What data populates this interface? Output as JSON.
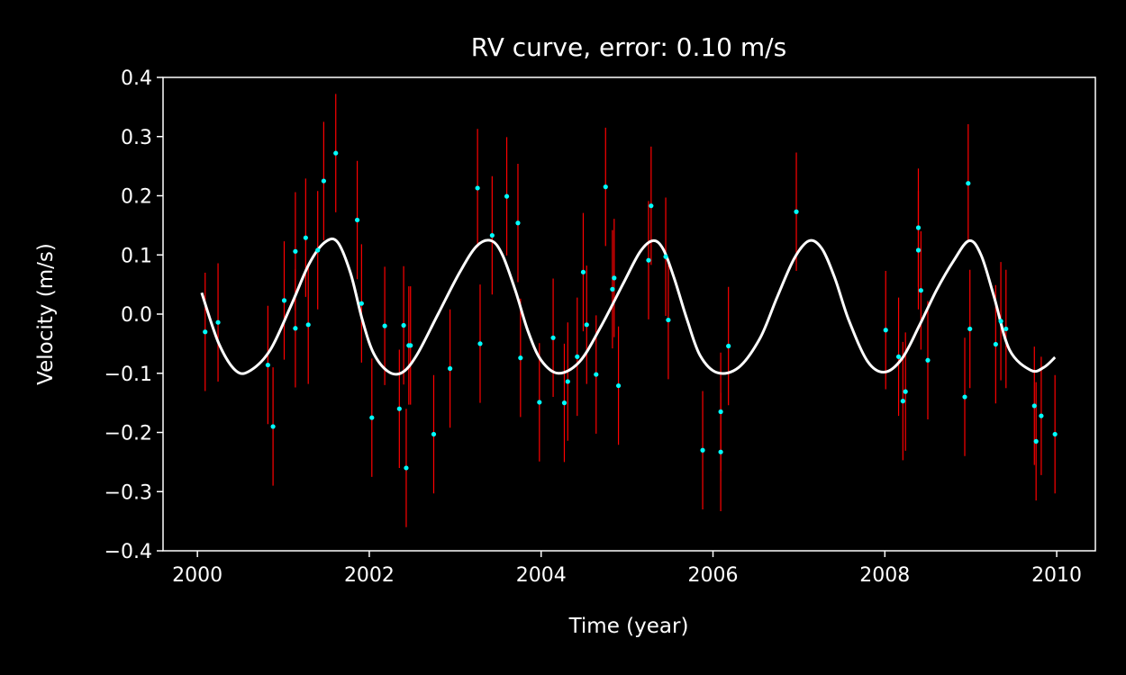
{
  "chart_data": {
    "type": "scatter",
    "title": "RV curve, error: 0.10 m/s",
    "xlabel": "Time (year)",
    "ylabel": "Velocity (m/s)",
    "xlim": [
      1999.6,
      2010.45
    ],
    "ylim": [
      -0.4,
      0.4
    ],
    "xticks": [
      2000,
      2002,
      2004,
      2006,
      2008,
      2010
    ],
    "xtick_labels": [
      "2000",
      "2002",
      "2004",
      "2006",
      "2008",
      "2010"
    ],
    "yticks": [
      -0.4,
      -0.3,
      -0.2,
      -0.1,
      0.0,
      0.1,
      0.2,
      0.3,
      0.4
    ],
    "ytick_labels": [
      "−0.4",
      "−0.3",
      "−0.2",
      "−0.1",
      "0.0",
      "0.1",
      "0.2",
      "0.3",
      "0.4"
    ],
    "grid": false,
    "error": 0.1,
    "series": [
      {
        "kind": "observations",
        "marker_color": "#00FFFF",
        "errorbar_color": "#FF0000",
        "x": [
          2000.09,
          2000.24,
          2000.82,
          2000.88,
          2001.01,
          2001.14,
          2001.14,
          2001.26,
          2001.29,
          2001.4,
          2001.47,
          2001.61,
          2001.86,
          2001.91,
          2002.03,
          2002.18,
          2002.35,
          2002.4,
          2002.43,
          2002.46,
          2002.48,
          2002.75,
          2002.94,
          2003.26,
          2003.29,
          2003.43,
          2003.6,
          2003.73,
          2003.76,
          2003.98,
          2004.14,
          2004.27,
          2004.31,
          2004.42,
          2004.49,
          2004.53,
          2004.64,
          2004.75,
          2004.83,
          2004.85,
          2004.9,
          2005.25,
          2005.28,
          2005.45,
          2005.48,
          2005.88,
          2006.09,
          2006.09,
          2006.18,
          2006.97,
          2008.01,
          2008.16,
          2008.21,
          2008.24,
          2008.39,
          2008.39,
          2008.42,
          2008.5,
          2008.93,
          2008.97,
          2008.99,
          2009.29,
          2009.35,
          2009.41,
          2009.74,
          2009.76,
          2009.82,
          2009.98
        ],
        "y": [
          -0.03,
          -0.014,
          -0.086,
          -0.19,
          0.023,
          0.106,
          -0.024,
          0.129,
          -0.018,
          0.108,
          0.225,
          0.272,
          0.159,
          0.018,
          -0.175,
          -0.02,
          -0.16,
          -0.019,
          -0.26,
          -0.053,
          -0.053,
          -0.203,
          -0.092,
          0.213,
          -0.05,
          0.133,
          0.199,
          0.154,
          -0.074,
          -0.149,
          -0.04,
          -0.15,
          -0.114,
          -0.072,
          0.071,
          -0.018,
          -0.102,
          0.215,
          0.042,
          0.061,
          -0.121,
          0.091,
          0.183,
          0.097,
          -0.01,
          -0.23,
          -0.165,
          -0.233,
          -0.054,
          0.173,
          -0.027,
          -0.072,
          -0.147,
          -0.131,
          0.146,
          0.108,
          0.04,
          -0.078,
          -0.14,
          0.221,
          -0.025,
          -0.051,
          -0.012,
          -0.025,
          -0.155,
          -0.215,
          -0.172,
          -0.203
        ]
      },
      {
        "kind": "model",
        "line_color": "#FFFFFF",
        "x": [
          2000.05,
          2000.25,
          2000.45,
          2000.62,
          2000.85,
          2001.1,
          2001.3,
          2001.48,
          2001.63,
          2001.78,
          2001.92,
          2002.05,
          2002.22,
          2002.38,
          2002.55,
          2002.8,
          2003.05,
          2003.25,
          2003.42,
          2003.55,
          2003.7,
          2003.85,
          2004.0,
          2004.2,
          2004.45,
          2004.7,
          2004.95,
          2005.15,
          2005.3,
          2005.42,
          2005.55,
          2005.7,
          2005.85,
          2006.05,
          2006.3,
          2006.55,
          2006.75,
          2006.95,
          2007.12,
          2007.27,
          2007.42,
          2007.58,
          2007.8,
          2008.0,
          2008.2,
          2008.4,
          2008.6,
          2008.8,
          2008.98,
          2009.12,
          2009.27,
          2009.45,
          2009.7,
          2009.85,
          2009.98
        ],
        "y": [
          0.036,
          -0.05,
          -0.096,
          -0.095,
          -0.06,
          0.018,
          0.085,
          0.121,
          0.122,
          0.07,
          -0.01,
          -0.066,
          -0.097,
          -0.099,
          -0.07,
          0.0,
          0.07,
          0.115,
          0.124,
          0.1,
          0.04,
          -0.03,
          -0.078,
          -0.1,
          -0.08,
          -0.02,
          0.05,
          0.105,
          0.124,
          0.11,
          0.06,
          -0.01,
          -0.07,
          -0.099,
          -0.09,
          -0.04,
          0.03,
          0.095,
          0.124,
          0.11,
          0.06,
          -0.01,
          -0.08,
          -0.098,
          -0.075,
          -0.02,
          0.04,
          0.09,
          0.124,
          0.1,
          0.03,
          -0.06,
          -0.095,
          -0.09,
          -0.073
        ]
      }
    ]
  }
}
